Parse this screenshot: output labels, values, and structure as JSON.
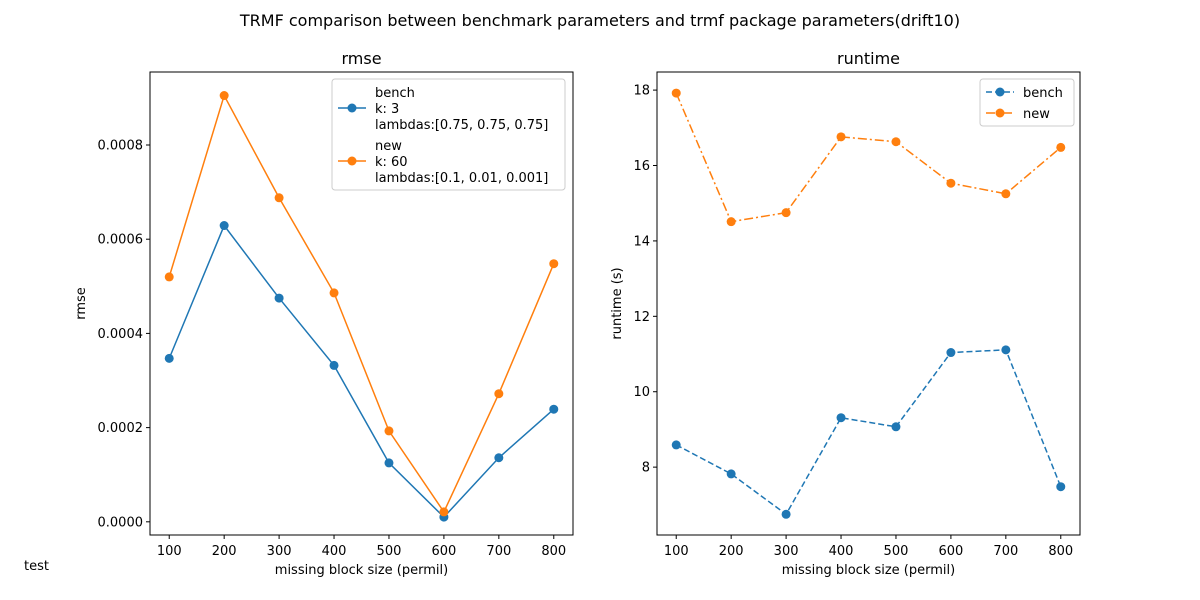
{
  "figure": {
    "suptitle": "TRMF comparison between benchmark parameters and trmf package parameters(drift10)",
    "footnote": "test"
  },
  "colors": {
    "bench": "#1f77b4",
    "new": "#ff7f0e"
  },
  "chart_data": [
    {
      "type": "line",
      "title": "rmse",
      "xlabel": "missing block size (permil)",
      "ylabel": "rmse",
      "x": [
        100,
        200,
        300,
        400,
        500,
        600,
        700,
        800
      ],
      "xticks": [
        "100",
        "200",
        "300",
        "400",
        "500",
        "600",
        "700",
        "800"
      ],
      "ylim": [
        -2.8e-05,
        0.000955
      ],
      "yticks": [
        0.0,
        0.0002,
        0.0004,
        0.0006,
        0.0008
      ],
      "ytick_labels": [
        "0.0000",
        "0.0002",
        "0.0004",
        "0.0006",
        "0.0008"
      ],
      "grid": false,
      "legend_position": "upper-right",
      "series": [
        {
          "name": "bench",
          "legend_lines": [
            "bench",
            "k: 3",
            "lambdas:[0.75, 0.75, 0.75]"
          ],
          "linestyle": "solid",
          "values": [
            0.000347,
            0.000629,
            0.000475,
            0.000332,
            0.000125,
            1e-05,
            0.000136,
            0.000239
          ]
        },
        {
          "name": "new",
          "legend_lines": [
            "new",
            "k: 60",
            "lambdas:[0.1, 0.01, 0.001]"
          ],
          "linestyle": "solid",
          "values": [
            0.00052,
            0.000905,
            0.000688,
            0.000486,
            0.000193,
            2.1e-05,
            0.000272,
            0.000548
          ]
        }
      ]
    },
    {
      "type": "line",
      "title": "runtime",
      "xlabel": "missing block size (permil)",
      "ylabel": "runtime (s)",
      "x": [
        100,
        200,
        300,
        400,
        500,
        600,
        700,
        800
      ],
      "xticks": [
        "100",
        "200",
        "300",
        "400",
        "500",
        "600",
        "700",
        "800"
      ],
      "ylim": [
        6.2,
        18.48
      ],
      "yticks": [
        8,
        10,
        12,
        14,
        16,
        18
      ],
      "ytick_labels": [
        "8",
        "10",
        "12",
        "14",
        "16",
        "18"
      ],
      "grid": false,
      "legend_position": "upper-right",
      "series": [
        {
          "name": "bench",
          "legend_lines": [
            "bench"
          ],
          "linestyle": "dashed",
          "values": [
            8.59,
            7.82,
            6.75,
            9.31,
            9.07,
            11.04,
            11.11,
            7.48
          ]
        },
        {
          "name": "new",
          "legend_lines": [
            "new"
          ],
          "linestyle": "dashdot",
          "values": [
            17.92,
            14.51,
            14.75,
            16.76,
            16.63,
            15.53,
            15.25,
            16.48
          ]
        }
      ]
    }
  ]
}
